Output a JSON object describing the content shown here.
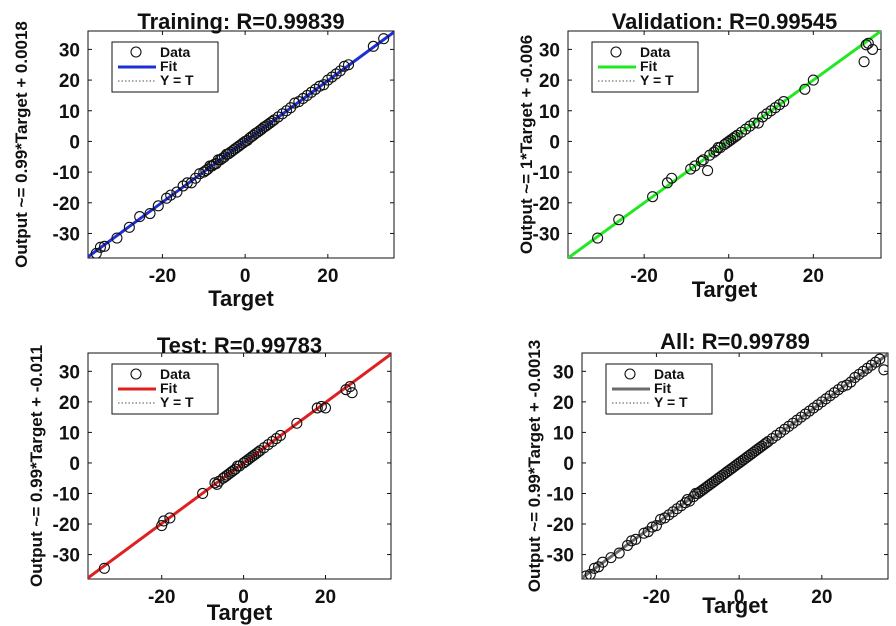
{
  "figure": {
    "type": "regression-grid"
  },
  "chart_data": [
    {
      "type": "scatter",
      "title": "Training: R=0.99839",
      "xlabel": "Target",
      "ylabel": "Output ~= 0.99*Target + 0.0018",
      "xlim": [
        -38,
        36
      ],
      "ylim": [
        -38,
        36
      ],
      "xticks": [
        -20,
        0,
        20
      ],
      "yticks": [
        -30,
        -20,
        -10,
        0,
        10,
        20,
        30
      ],
      "legend": [
        "Data",
        "Fit",
        "Y = T"
      ],
      "legend_position": "top-left",
      "fit_color": "#1f2fd6",
      "fit": {
        "slope": 0.99,
        "intercept": 0.0018
      },
      "points": [
        [
          -36,
          -36.5
        ],
        [
          -35,
          -34.5
        ],
        [
          -34,
          -34.2
        ],
        [
          -31,
          -31.5
        ],
        [
          -28,
          -28
        ],
        [
          -25.5,
          -24.5
        ],
        [
          -23,
          -23.5
        ],
        [
          -21,
          -21
        ],
        [
          -19,
          -18.5
        ],
        [
          -18,
          -17.5
        ],
        [
          -16.5,
          -16.5
        ],
        [
          -15,
          -14.5
        ],
        [
          -14,
          -13.5
        ],
        [
          -13,
          -13.5
        ],
        [
          -12,
          -12
        ],
        [
          -11,
          -10.5
        ],
        [
          -10,
          -10
        ],
        [
          -9.5,
          -9.5
        ],
        [
          -9,
          -9
        ],
        [
          -8.5,
          -8
        ],
        [
          -8,
          -8
        ],
        [
          -7.5,
          -7.5
        ],
        [
          -7,
          -7.2
        ],
        [
          -6.5,
          -6
        ],
        [
          -6,
          -6
        ],
        [
          -5.5,
          -5.5
        ],
        [
          -5,
          -5
        ],
        [
          -4.5,
          -4.2
        ],
        [
          -4,
          -4
        ],
        [
          -3.5,
          -3.5
        ],
        [
          -3,
          -3
        ],
        [
          -2.5,
          -2.5
        ],
        [
          -2,
          -2
        ],
        [
          -1.5,
          -1.5
        ],
        [
          -1,
          -1
        ],
        [
          -0.5,
          -0.5
        ],
        [
          0,
          0
        ],
        [
          0.5,
          0.3
        ],
        [
          1,
          1
        ],
        [
          1.5,
          1.5
        ],
        [
          2,
          2
        ],
        [
          2.5,
          2.6
        ],
        [
          3,
          3
        ],
        [
          3.5,
          3.5
        ],
        [
          4,
          4
        ],
        [
          4.5,
          4.6
        ],
        [
          5,
          5
        ],
        [
          5.5,
          5.5
        ],
        [
          6,
          6
        ],
        [
          6.5,
          6.5
        ],
        [
          7,
          7
        ],
        [
          8,
          8
        ],
        [
          9,
          9
        ],
        [
          10,
          10
        ],
        [
          11,
          11
        ],
        [
          12,
          12.5
        ],
        [
          13,
          13
        ],
        [
          14,
          14
        ],
        [
          15,
          15
        ],
        [
          16,
          16
        ],
        [
          17,
          17
        ],
        [
          18,
          18
        ],
        [
          19,
          18.5
        ],
        [
          20,
          20
        ],
        [
          21,
          21
        ],
        [
          22,
          22
        ],
        [
          23,
          23
        ],
        [
          24,
          24.5
        ],
        [
          25,
          25
        ],
        [
          31,
          31
        ],
        [
          33.5,
          33.5
        ]
      ]
    },
    {
      "type": "scatter",
      "title": "Validation: R=0.99545",
      "xlabel": "Target",
      "ylabel": "Output ~= 1*Target + -0.006",
      "xlim": [
        -38,
        36
      ],
      "ylim": [
        -38,
        36
      ],
      "xticks": [
        -20,
        0,
        20
      ],
      "yticks": [
        -30,
        -20,
        -10,
        0,
        10,
        20,
        30
      ],
      "legend": [
        "Data",
        "Fit",
        "Y = T"
      ],
      "legend_position": "top-left",
      "fit_color": "#22e822",
      "fit": {
        "slope": 1,
        "intercept": -0.006
      },
      "points": [
        [
          -31,
          -31.5
        ],
        [
          -26,
          -25.5
        ],
        [
          -18,
          -18
        ],
        [
          -14.5,
          -13.5
        ],
        [
          -13.5,
          -12
        ],
        [
          -9,
          -9
        ],
        [
          -8,
          -8
        ],
        [
          -6.5,
          -6.5
        ],
        [
          -6,
          -6
        ],
        [
          -5,
          -9.5
        ],
        [
          -4.5,
          -4.5
        ],
        [
          -3.5,
          -3.5
        ],
        [
          -3,
          -3
        ],
        [
          -2.5,
          -2
        ],
        [
          -2,
          -2
        ],
        [
          -1,
          -1
        ],
        [
          -0.5,
          -0.5
        ],
        [
          0,
          0
        ],
        [
          0.5,
          0.5
        ],
        [
          1,
          1
        ],
        [
          1.5,
          1.5
        ],
        [
          2,
          2
        ],
        [
          3,
          3
        ],
        [
          4,
          4
        ],
        [
          5,
          5
        ],
        [
          6,
          6
        ],
        [
          7,
          6
        ],
        [
          8,
          8
        ],
        [
          9,
          9
        ],
        [
          10,
          10
        ],
        [
          11,
          11
        ],
        [
          12,
          12
        ],
        [
          13,
          13
        ],
        [
          18,
          17
        ],
        [
          20,
          20
        ],
        [
          32,
          26
        ],
        [
          32.5,
          31.5
        ],
        [
          33,
          32
        ],
        [
          34,
          30
        ]
      ]
    },
    {
      "type": "scatter",
      "title": "Test: R=0.99783",
      "xlabel": "Target",
      "ylabel": "Output ~= 0.99*Target + -0.011",
      "xlim": [
        -38,
        36
      ],
      "ylim": [
        -38,
        36
      ],
      "xticks": [
        -20,
        0,
        20
      ],
      "yticks": [
        -30,
        -20,
        -10,
        0,
        10,
        20,
        30
      ],
      "legend": [
        "Data",
        "Fit",
        "Y = T"
      ],
      "legend_position": "top-left",
      "fit_color": "#e02020",
      "fit": {
        "slope": 0.99,
        "intercept": -0.011
      },
      "points": [
        [
          -34,
          -34.5
        ],
        [
          -20,
          -20.5
        ],
        [
          -19.5,
          -19
        ],
        [
          -18,
          -18
        ],
        [
          -10,
          -10
        ],
        [
          -7,
          -6.5
        ],
        [
          -6.5,
          -7
        ],
        [
          -6,
          -6
        ],
        [
          -5,
          -5
        ],
        [
          -4.5,
          -4.5
        ],
        [
          -4,
          -4
        ],
        [
          -3.5,
          -3.5
        ],
        [
          -3,
          -3
        ],
        [
          -2.5,
          -2.5
        ],
        [
          -2,
          -2
        ],
        [
          -1.5,
          -1
        ],
        [
          -1,
          -1
        ],
        [
          0,
          0
        ],
        [
          0.5,
          0.5
        ],
        [
          1,
          1
        ],
        [
          1.5,
          1.5
        ],
        [
          2,
          2
        ],
        [
          2.5,
          2.5
        ],
        [
          3,
          3
        ],
        [
          3.5,
          3.5
        ],
        [
          4,
          4
        ],
        [
          5,
          5
        ],
        [
          6,
          6
        ],
        [
          7,
          7
        ],
        [
          8,
          8
        ],
        [
          9,
          9
        ],
        [
          13,
          13
        ],
        [
          18,
          18
        ],
        [
          19,
          18.5
        ],
        [
          20,
          18
        ],
        [
          25,
          24
        ],
        [
          26,
          25
        ],
        [
          26.5,
          23
        ]
      ]
    },
    {
      "type": "scatter",
      "title": "All: R=0.99789",
      "xlabel": "Target",
      "ylabel": "Output ~= 0.99*Target + -0.0013",
      "xlim": [
        -38,
        36
      ],
      "ylim": [
        -38,
        36
      ],
      "xticks": [
        -20,
        0,
        20
      ],
      "yticks": [
        -30,
        -20,
        -10,
        0,
        10,
        20,
        30
      ],
      "legend": [
        "Data",
        "Fit",
        "Y = T"
      ],
      "legend_position": "top-left",
      "fit_color": "#6b6b6b",
      "fit": {
        "slope": 0.99,
        "intercept": -0.0013
      },
      "points": [
        [
          -37,
          -37
        ],
        [
          -36,
          -36.5
        ],
        [
          -35,
          -34.5
        ],
        [
          -34,
          -34
        ],
        [
          -33,
          -32.5
        ],
        [
          -31,
          -31
        ],
        [
          -29,
          -29.5
        ],
        [
          -27,
          -27
        ],
        [
          -26,
          -25.5
        ],
        [
          -25,
          -25
        ],
        [
          -23,
          -23
        ],
        [
          -22,
          -22.5
        ],
        [
          -21,
          -21
        ],
        [
          -20,
          -20.5
        ],
        [
          -19,
          -18.5
        ],
        [
          -18,
          -18
        ],
        [
          -17,
          -17
        ],
        [
          -16,
          -16
        ],
        [
          -15,
          -15
        ],
        [
          -14,
          -14
        ],
        [
          -13,
          -13
        ],
        [
          -12.5,
          -12
        ],
        [
          -12,
          -12.5
        ],
        [
          -11,
          -11
        ],
        [
          -10.5,
          -10
        ],
        [
          -10,
          -10
        ],
        [
          -9.5,
          -9.5
        ],
        [
          -9,
          -9
        ],
        [
          -8.5,
          -8.5
        ],
        [
          -8,
          -8
        ],
        [
          -7.5,
          -7.5
        ],
        [
          -7,
          -7
        ],
        [
          -6.5,
          -6.5
        ],
        [
          -6,
          -6
        ],
        [
          -5.5,
          -5.5
        ],
        [
          -5,
          -5
        ],
        [
          -4.5,
          -4.5
        ],
        [
          -4,
          -4
        ],
        [
          -3.5,
          -3.5
        ],
        [
          -3,
          -3
        ],
        [
          -2.5,
          -2.5
        ],
        [
          -2,
          -2
        ],
        [
          -1.5,
          -1.5
        ],
        [
          -1,
          -1
        ],
        [
          -0.5,
          -0.5
        ],
        [
          0,
          0
        ],
        [
          0.5,
          0.5
        ],
        [
          1,
          1
        ],
        [
          1.5,
          1.5
        ],
        [
          2,
          2
        ],
        [
          2.5,
          2.5
        ],
        [
          3,
          3
        ],
        [
          3.5,
          3.5
        ],
        [
          4,
          4
        ],
        [
          4.5,
          4.5
        ],
        [
          5,
          5
        ],
        [
          5.5,
          5.5
        ],
        [
          6,
          6
        ],
        [
          6.5,
          6.5
        ],
        [
          7,
          7
        ],
        [
          8,
          8
        ],
        [
          9,
          9
        ],
        [
          10,
          10
        ],
        [
          11,
          11
        ],
        [
          12,
          12
        ],
        [
          13,
          13
        ],
        [
          14,
          14
        ],
        [
          15,
          15
        ],
        [
          16,
          16
        ],
        [
          17,
          17
        ],
        [
          18,
          18
        ],
        [
          19,
          19
        ],
        [
          20,
          20
        ],
        [
          21,
          21
        ],
        [
          22,
          22
        ],
        [
          23,
          23
        ],
        [
          24,
          24
        ],
        [
          25,
          25
        ],
        [
          26,
          25.5
        ],
        [
          27,
          26.5
        ],
        [
          28,
          28
        ],
        [
          29,
          29
        ],
        [
          30,
          30
        ],
        [
          31,
          31
        ],
        [
          32,
          32
        ],
        [
          33,
          33
        ],
        [
          34,
          34
        ],
        [
          35,
          30.5
        ]
      ]
    }
  ]
}
